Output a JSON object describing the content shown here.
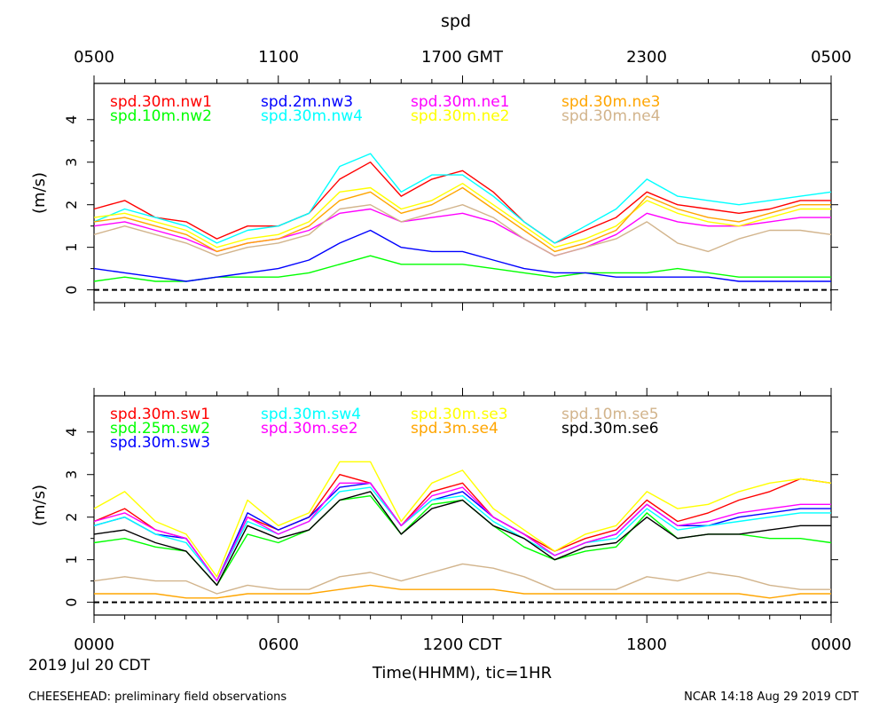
{
  "figure": {
    "title": "spd",
    "top_axis_labels": [
      "0500",
      "1100",
      "1700 GMT",
      "2300",
      "0500"
    ],
    "bottom_axis_labels": [
      "0000",
      "0600",
      "1200 CDT",
      "1800",
      "0000"
    ],
    "date_label": "2019 Jul 20 CDT",
    "xlabel": "Time(HHMM), tic=1HR",
    "footer_left": "CHEESEHEAD: preliminary field observations",
    "footer_right": "NCAR 14:18 Aug 29 2019 CDT"
  },
  "chart_data": [
    {
      "type": "line",
      "title": "spd",
      "ylabel": "(m/s)",
      "xlabel": "Time(HHMM), tic=1HR",
      "x_unit": "hours since 0000 CDT",
      "xlim": [
        0,
        24
      ],
      "ylim": [
        -0.3,
        4.85
      ],
      "yticks": [
        0,
        1,
        2,
        3,
        4
      ],
      "reference_line": 0,
      "x_ticks_top": [
        "0500",
        "1100",
        "1700 GMT",
        "2300",
        "0500"
      ],
      "series": [
        {
          "name": "spd.30m.nw1",
          "color": "#ff0000",
          "x": [
            0,
            1,
            2,
            3,
            4,
            5,
            6,
            7,
            8,
            9,
            10,
            11,
            12,
            13,
            14,
            15,
            16,
            17,
            18,
            19,
            20,
            21,
            22,
            23,
            24
          ],
          "values": [
            1.9,
            2.1,
            1.7,
            1.6,
            1.2,
            1.5,
            1.5,
            1.8,
            2.6,
            3.0,
            2.2,
            2.6,
            2.8,
            2.3,
            1.6,
            1.1,
            1.4,
            1.7,
            2.3,
            2.0,
            1.9,
            1.8,
            1.9,
            2.1,
            2.1
          ]
        },
        {
          "name": "spd.10m.nw2",
          "color": "#00ff00",
          "x": [
            0,
            1,
            2,
            3,
            4,
            5,
            6,
            7,
            8,
            9,
            10,
            11,
            12,
            13,
            14,
            15,
            16,
            17,
            18,
            19,
            20,
            21,
            22,
            23,
            24
          ],
          "values": [
            0.2,
            0.3,
            0.2,
            0.2,
            0.3,
            0.3,
            0.3,
            0.4,
            0.6,
            0.8,
            0.6,
            0.6,
            0.6,
            0.5,
            0.4,
            0.3,
            0.4,
            0.4,
            0.4,
            0.5,
            0.4,
            0.3,
            0.3,
            0.3,
            0.3
          ]
        },
        {
          "name": "spd.2m.nw3",
          "color": "#0000ff",
          "x": [
            0,
            1,
            2,
            3,
            4,
            5,
            6,
            7,
            8,
            9,
            10,
            11,
            12,
            13,
            14,
            15,
            16,
            17,
            18,
            19,
            20,
            21,
            22,
            23,
            24
          ],
          "values": [
            0.5,
            0.4,
            0.3,
            0.2,
            0.3,
            0.4,
            0.5,
            0.7,
            1.1,
            1.4,
            1.0,
            0.9,
            0.9,
            0.7,
            0.5,
            0.4,
            0.4,
            0.3,
            0.3,
            0.3,
            0.3,
            0.2,
            0.2,
            0.2,
            0.2
          ]
        },
        {
          "name": "spd.30m.nw4",
          "color": "#00ffff",
          "x": [
            0,
            1,
            2,
            3,
            4,
            5,
            6,
            7,
            8,
            9,
            10,
            11,
            12,
            13,
            14,
            15,
            16,
            17,
            18,
            19,
            20,
            21,
            22,
            23,
            24
          ],
          "values": [
            1.6,
            1.9,
            1.7,
            1.5,
            1.1,
            1.4,
            1.5,
            1.8,
            2.9,
            3.2,
            2.3,
            2.7,
            2.7,
            2.2,
            1.6,
            1.1,
            1.5,
            1.9,
            2.6,
            2.2,
            2.1,
            2.0,
            2.1,
            2.2,
            2.3
          ]
        },
        {
          "name": "spd.30m.ne1",
          "color": "#ff00ff",
          "x": [
            0,
            1,
            2,
            3,
            4,
            5,
            6,
            7,
            8,
            9,
            10,
            11,
            12,
            13,
            14,
            15,
            16,
            17,
            18,
            19,
            20,
            21,
            22,
            23,
            24
          ],
          "values": [
            1.5,
            1.6,
            1.4,
            1.2,
            0.9,
            1.1,
            1.2,
            1.4,
            1.8,
            1.9,
            1.6,
            1.7,
            1.8,
            1.6,
            1.2,
            0.8,
            1.0,
            1.3,
            1.8,
            1.6,
            1.5,
            1.5,
            1.6,
            1.7,
            1.7
          ]
        },
        {
          "name": "spd.30m.ne2",
          "color": "#ffff00",
          "x": [
            0,
            1,
            2,
            3,
            4,
            5,
            6,
            7,
            8,
            9,
            10,
            11,
            12,
            13,
            14,
            15,
            16,
            17,
            18,
            19,
            20,
            21,
            22,
            23,
            24
          ],
          "values": [
            1.7,
            1.8,
            1.6,
            1.4,
            1.0,
            1.2,
            1.3,
            1.6,
            2.3,
            2.4,
            1.9,
            2.1,
            2.5,
            2.0,
            1.5,
            1.0,
            1.2,
            1.5,
            2.1,
            1.8,
            1.6,
            1.5,
            1.7,
            1.9,
            1.9
          ]
        },
        {
          "name": "spd.30m.ne3",
          "color": "#ffa500",
          "x": [
            0,
            1,
            2,
            3,
            4,
            5,
            6,
            7,
            8,
            9,
            10,
            11,
            12,
            13,
            14,
            15,
            16,
            17,
            18,
            19,
            20,
            21,
            22,
            23,
            24
          ],
          "values": [
            1.6,
            1.7,
            1.5,
            1.3,
            0.9,
            1.1,
            1.2,
            1.5,
            2.1,
            2.3,
            1.8,
            2.0,
            2.4,
            1.9,
            1.4,
            0.9,
            1.1,
            1.4,
            2.2,
            1.9,
            1.7,
            1.6,
            1.8,
            2.0,
            2.0
          ]
        },
        {
          "name": "spd.30m.ne4",
          "color": "#d2b48c",
          "x": [
            0,
            1,
            2,
            3,
            4,
            5,
            6,
            7,
            8,
            9,
            10,
            11,
            12,
            13,
            14,
            15,
            16,
            17,
            18,
            19,
            20,
            21,
            22,
            23,
            24
          ],
          "values": [
            1.3,
            1.5,
            1.3,
            1.1,
            0.8,
            1.0,
            1.1,
            1.3,
            1.9,
            2.0,
            1.6,
            1.8,
            2.0,
            1.7,
            1.2,
            0.8,
            1.0,
            1.2,
            1.6,
            1.1,
            0.9,
            1.2,
            1.4,
            1.4,
            1.3
          ]
        }
      ]
    },
    {
      "type": "line",
      "ylabel": "(m/s)",
      "xlabel": "Time(HHMM), tic=1HR",
      "x_unit": "hours since 0000 CDT",
      "xlim": [
        0,
        24
      ],
      "ylim": [
        -0.3,
        4.85
      ],
      "yticks": [
        0,
        1,
        2,
        3,
        4
      ],
      "reference_line": 0,
      "x_ticks_bottom": [
        "0000",
        "0600",
        "1200 CDT",
        "1800",
        "0000"
      ],
      "series": [
        {
          "name": "spd.30m.sw1",
          "color": "#ff0000",
          "x": [
            0,
            1,
            2,
            3,
            4,
            5,
            6,
            7,
            8,
            9,
            10,
            11,
            12,
            13,
            14,
            15,
            16,
            17,
            18,
            19,
            20,
            21,
            22,
            23,
            24
          ],
          "values": [
            1.9,
            2.2,
            1.7,
            1.5,
            0.5,
            2.0,
            1.7,
            2.0,
            3.0,
            2.8,
            1.8,
            2.6,
            2.8,
            2.0,
            1.6,
            1.2,
            1.5,
            1.7,
            2.4,
            1.9,
            2.1,
            2.4,
            2.6,
            2.9,
            2.8
          ]
        },
        {
          "name": "spd.25m.sw2",
          "color": "#00ff00",
          "x": [
            0,
            1,
            2,
            3,
            4,
            5,
            6,
            7,
            8,
            9,
            10,
            11,
            12,
            13,
            14,
            15,
            16,
            17,
            18,
            19,
            20,
            21,
            22,
            23,
            24
          ],
          "values": [
            1.4,
            1.5,
            1.3,
            1.2,
            0.4,
            1.6,
            1.4,
            1.7,
            2.4,
            2.5,
            1.6,
            2.3,
            2.4,
            1.8,
            1.3,
            1.0,
            1.2,
            1.3,
            2.1,
            1.5,
            1.6,
            1.6,
            1.5,
            1.5,
            1.4
          ]
        },
        {
          "name": "spd.30m.sw3",
          "color": "#0000ff",
          "x": [
            0,
            1,
            2,
            3,
            4,
            5,
            6,
            7,
            8,
            9,
            10,
            11,
            12,
            13,
            14,
            15,
            16,
            17,
            18,
            19,
            20,
            21,
            22,
            23,
            24
          ],
          "values": [
            1.8,
            2.0,
            1.6,
            1.5,
            0.5,
            2.1,
            1.7,
            2.0,
            2.7,
            2.8,
            1.8,
            2.4,
            2.6,
            2.0,
            1.6,
            1.1,
            1.4,
            1.6,
            2.3,
            1.8,
            1.8,
            2.0,
            2.1,
            2.2,
            2.2
          ]
        },
        {
          "name": "spd.30m.sw4",
          "color": "#00ffff",
          "x": [
            0,
            1,
            2,
            3,
            4,
            5,
            6,
            7,
            8,
            9,
            10,
            11,
            12,
            13,
            14,
            15,
            16,
            17,
            18,
            19,
            20,
            21,
            22,
            23,
            24
          ],
          "values": [
            1.8,
            2.0,
            1.6,
            1.4,
            0.5,
            1.9,
            1.6,
            1.9,
            2.6,
            2.7,
            1.8,
            2.4,
            2.5,
            1.9,
            1.5,
            1.1,
            1.4,
            1.5,
            2.2,
            1.7,
            1.8,
            1.9,
            2.0,
            2.1,
            2.1
          ]
        },
        {
          "name": "spd.30m.se2",
          "color": "#ff00ff",
          "x": [
            0,
            1,
            2,
            3,
            4,
            5,
            6,
            7,
            8,
            9,
            10,
            11,
            12,
            13,
            14,
            15,
            16,
            17,
            18,
            19,
            20,
            21,
            22,
            23,
            24
          ],
          "values": [
            1.9,
            2.1,
            1.7,
            1.5,
            0.5,
            2.0,
            1.6,
            1.9,
            2.8,
            2.8,
            1.8,
            2.5,
            2.7,
            2.0,
            1.6,
            1.1,
            1.4,
            1.6,
            2.3,
            1.8,
            1.9,
            2.1,
            2.2,
            2.3,
            2.3
          ]
        },
        {
          "name": "spd.30m.se3",
          "color": "#ffff00",
          "x": [
            0,
            1,
            2,
            3,
            4,
            5,
            6,
            7,
            8,
            9,
            10,
            11,
            12,
            13,
            14,
            15,
            16,
            17,
            18,
            19,
            20,
            21,
            22,
            23,
            24
          ],
          "values": [
            2.2,
            2.6,
            1.9,
            1.6,
            0.6,
            2.4,
            1.8,
            2.1,
            3.3,
            3.3,
            1.9,
            2.8,
            3.1,
            2.2,
            1.7,
            1.2,
            1.6,
            1.8,
            2.6,
            2.2,
            2.3,
            2.6,
            2.8,
            2.9,
            2.8
          ]
        },
        {
          "name": "spd.3m.se4",
          "color": "#ffa500",
          "x": [
            0,
            1,
            2,
            3,
            4,
            5,
            6,
            7,
            8,
            9,
            10,
            11,
            12,
            13,
            14,
            15,
            16,
            17,
            18,
            19,
            20,
            21,
            22,
            23,
            24
          ],
          "values": [
            0.2,
            0.2,
            0.2,
            0.1,
            0.1,
            0.2,
            0.2,
            0.2,
            0.3,
            0.4,
            0.3,
            0.3,
            0.3,
            0.3,
            0.2,
            0.2,
            0.2,
            0.2,
            0.2,
            0.2,
            0.2,
            0.2,
            0.1,
            0.2,
            0.2
          ]
        },
        {
          "name": "spd.10m.se5",
          "color": "#d2b48c",
          "x": [
            0,
            1,
            2,
            3,
            4,
            5,
            6,
            7,
            8,
            9,
            10,
            11,
            12,
            13,
            14,
            15,
            16,
            17,
            18,
            19,
            20,
            21,
            22,
            23,
            24
          ],
          "values": [
            0.5,
            0.6,
            0.5,
            0.5,
            0.2,
            0.4,
            0.3,
            0.3,
            0.6,
            0.7,
            0.5,
            0.7,
            0.9,
            0.8,
            0.6,
            0.3,
            0.3,
            0.3,
            0.6,
            0.5,
            0.7,
            0.6,
            0.4,
            0.3,
            0.3
          ]
        },
        {
          "name": "spd.30m.se6",
          "color": "#000000",
          "x": [
            0,
            1,
            2,
            3,
            4,
            5,
            6,
            7,
            8,
            9,
            10,
            11,
            12,
            13,
            14,
            15,
            16,
            17,
            18,
            19,
            20,
            21,
            22,
            23,
            24
          ],
          "values": [
            1.6,
            1.7,
            1.4,
            1.2,
            0.4,
            1.8,
            1.5,
            1.7,
            2.4,
            2.6,
            1.6,
            2.2,
            2.4,
            1.8,
            1.5,
            1.0,
            1.3,
            1.4,
            2.0,
            1.5,
            1.6,
            1.6,
            1.7,
            1.8,
            1.8
          ]
        }
      ]
    }
  ]
}
